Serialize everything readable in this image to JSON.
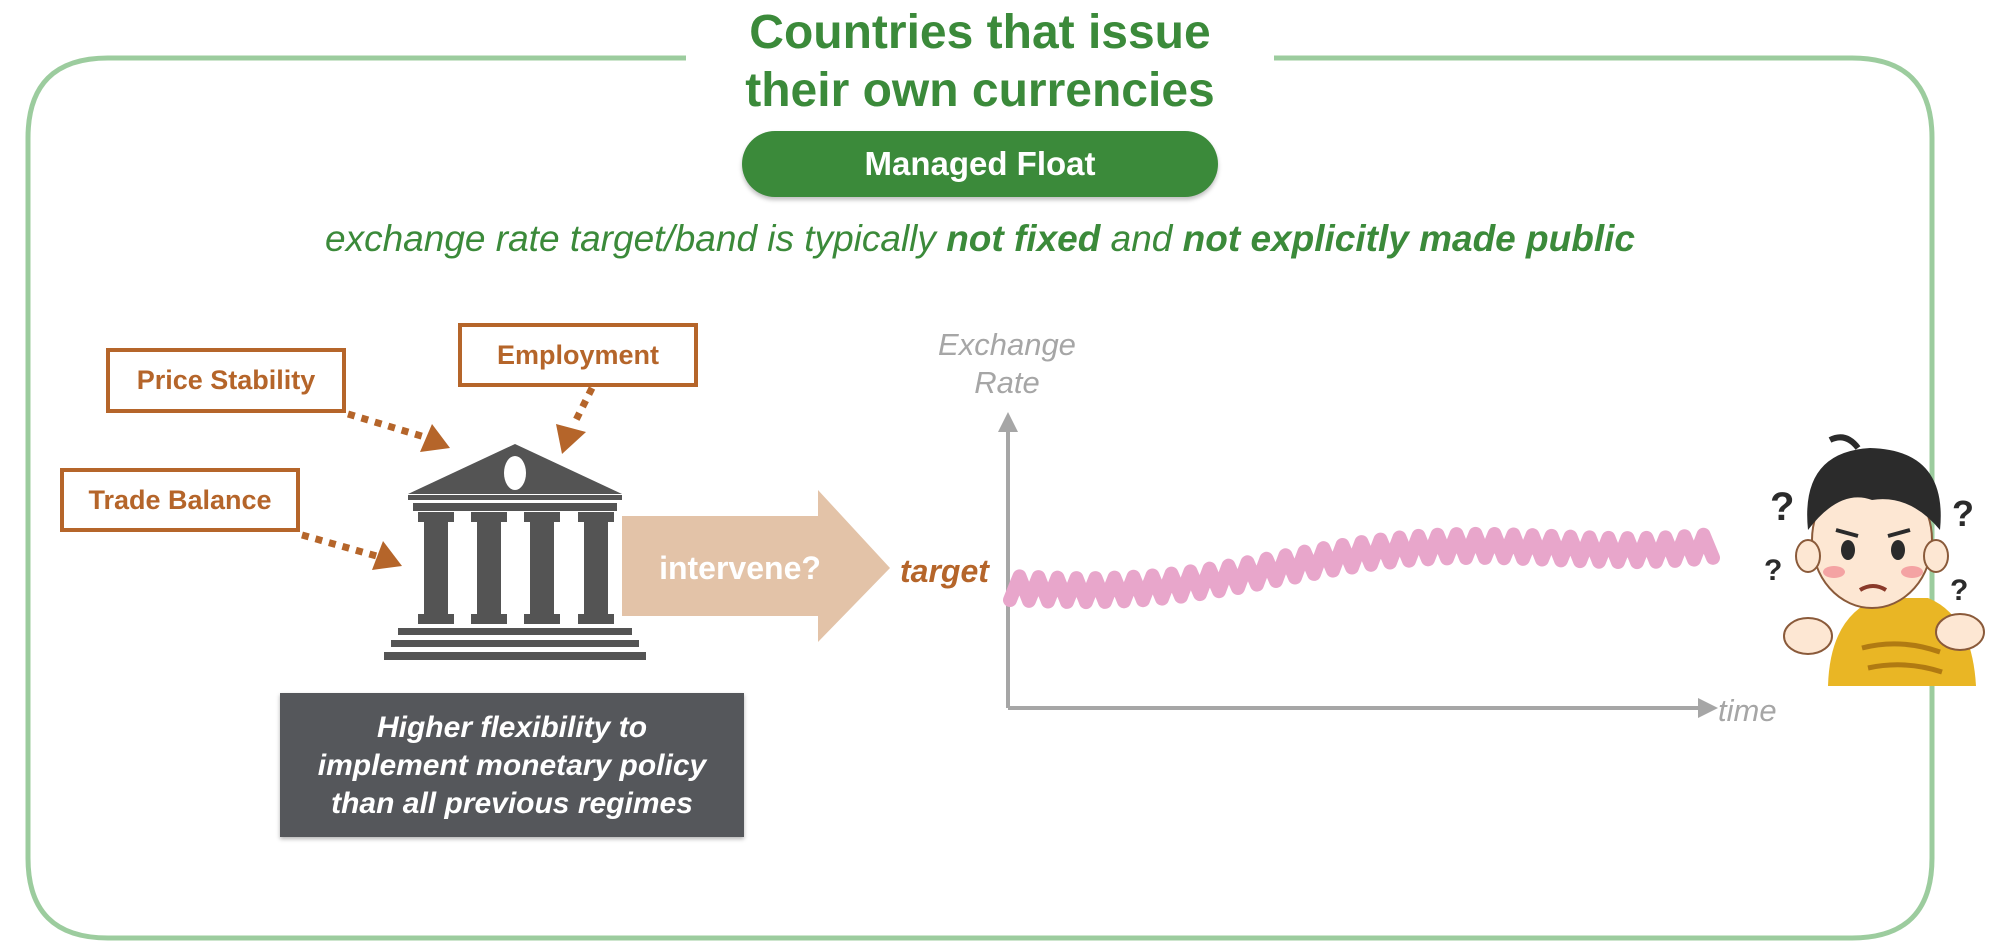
{
  "title": {
    "line1": "Countries that issue",
    "line2": "their own currencies"
  },
  "regime": {
    "label": "Managed Float"
  },
  "subtitle": {
    "part1": "exchange rate target/band is typically ",
    "emph1": "not fixed",
    "part2": " and ",
    "emph2": "not explicitly made public"
  },
  "goals": {
    "price_stability": "Price Stability",
    "employment": "Employment",
    "trade_balance": "Trade Balance"
  },
  "policy_box": {
    "line1": "Higher flexibility to",
    "line2": "implement monetary policy",
    "line3": "than all previous regimes"
  },
  "arrow": {
    "label": "intervene?"
  },
  "graph": {
    "target_label": "target",
    "y_axis_line1": "Exchange",
    "y_axis_line2": "Rate",
    "x_axis": "time"
  },
  "icons": {
    "central_bank": "bank-building-icon",
    "confused_person": "confused-child-icon"
  },
  "colors": {
    "green": "#3b8a3a",
    "frame": "#9ccc9e",
    "orange": "#b5652a",
    "arrow_fill": "#e3c3a8",
    "bank_gray": "#545454",
    "axis_gray": "#a6a6a6",
    "wave_pink": "#e8a6cb"
  }
}
